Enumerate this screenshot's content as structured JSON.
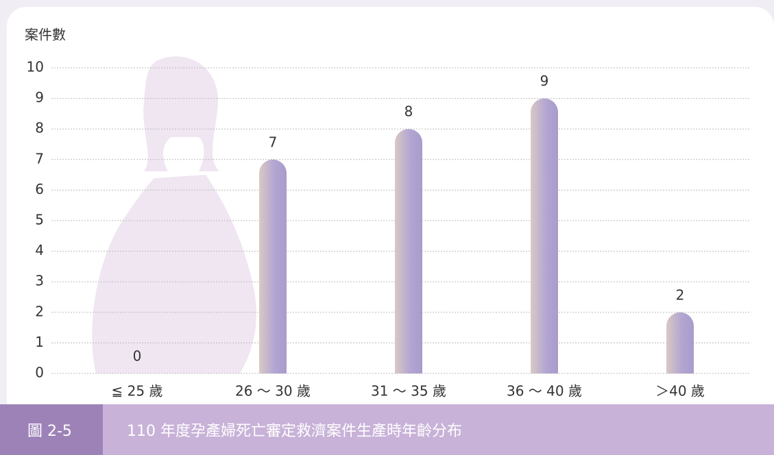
{
  "chart_data": {
    "type": "bar",
    "title": "110 年度孕產婦死亡審定救濟案件生產時年齡分布",
    "figure_label": "圖 2-5",
    "y_label": "案件數",
    "categories": [
      "≦ 25 歲",
      "26 ～ 30 歲",
      "31 ～ 35 歲",
      "36 ～ 40 歲",
      "＞40 歲"
    ],
    "values": [
      0,
      7,
      8,
      9,
      2
    ],
    "color": "#b0a3cf",
    "ylim": [
      0,
      10
    ],
    "yticks": [
      0,
      1,
      2,
      3,
      4,
      5,
      6,
      7,
      8,
      9,
      10
    ],
    "grid": true
  }
}
